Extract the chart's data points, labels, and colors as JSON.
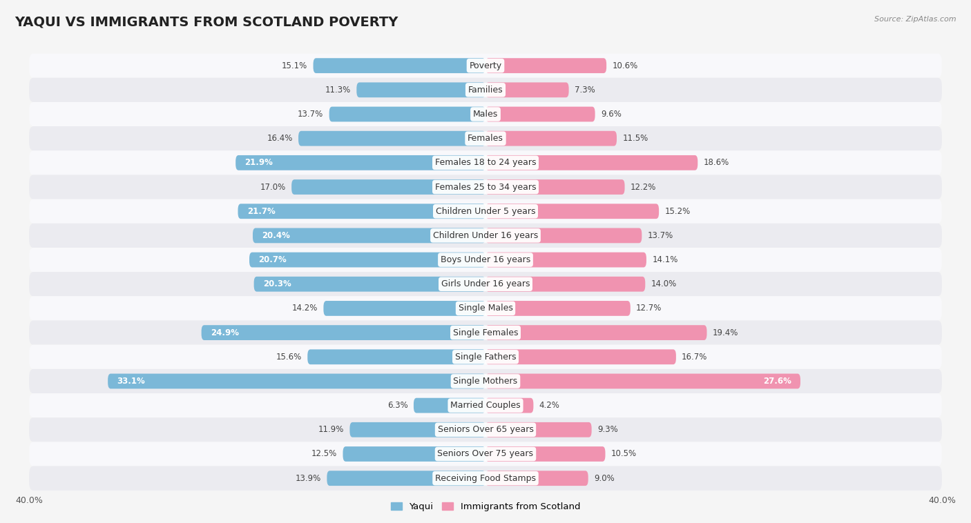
{
  "title": "YAQUI VS IMMIGRANTS FROM SCOTLAND POVERTY",
  "source": "Source: ZipAtlas.com",
  "categories": [
    "Poverty",
    "Families",
    "Males",
    "Females",
    "Females 18 to 24 years",
    "Females 25 to 34 years",
    "Children Under 5 years",
    "Children Under 16 years",
    "Boys Under 16 years",
    "Girls Under 16 years",
    "Single Males",
    "Single Females",
    "Single Fathers",
    "Single Mothers",
    "Married Couples",
    "Seniors Over 65 years",
    "Seniors Over 75 years",
    "Receiving Food Stamps"
  ],
  "yaqui_values": [
    15.1,
    11.3,
    13.7,
    16.4,
    21.9,
    17.0,
    21.7,
    20.4,
    20.7,
    20.3,
    14.2,
    24.9,
    15.6,
    33.1,
    6.3,
    11.9,
    12.5,
    13.9
  ],
  "scotland_values": [
    10.6,
    7.3,
    9.6,
    11.5,
    18.6,
    12.2,
    15.2,
    13.7,
    14.1,
    14.0,
    12.7,
    19.4,
    16.7,
    27.6,
    4.2,
    9.3,
    10.5,
    9.0
  ],
  "yaqui_color": "#7bb8d8",
  "scotland_color": "#f093b0",
  "yaqui_color_light": "#b8d8ee",
  "scotland_color_light": "#f8c0d0",
  "background_color": "#f5f5f5",
  "row_color_odd": "#ebebf0",
  "row_color_even": "#f8f8fb",
  "axis_limit": 40.0,
  "legend_label_yaqui": "Yaqui",
  "legend_label_scotland": "Immigrants from Scotland",
  "title_fontsize": 14,
  "label_fontsize": 9,
  "value_fontsize": 8.5
}
